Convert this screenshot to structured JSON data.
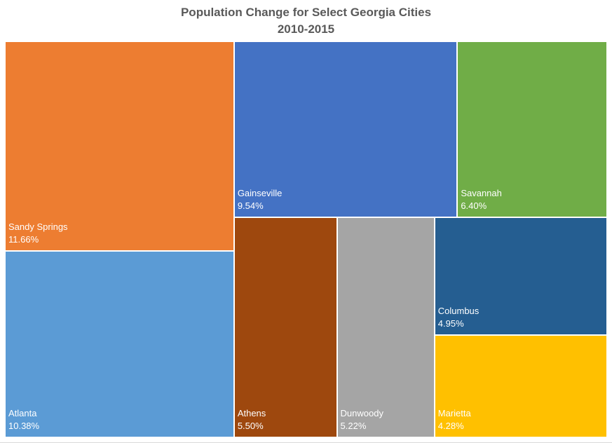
{
  "chart_data": {
    "type": "treemap",
    "title": "Population Change for Select Georgia Cities",
    "subtitle": "2010-2015",
    "items": [
      {
        "name": "Sandy Springs",
        "value": 11.66,
        "label": "11.66%",
        "color": "#ED7D31"
      },
      {
        "name": "Atlanta",
        "value": 10.38,
        "label": "10.38%",
        "color": "#5B9BD5"
      },
      {
        "name": "Gainseville",
        "value": 9.54,
        "label": "9.54%",
        "color": "#4472C4"
      },
      {
        "name": "Savannah",
        "value": 6.4,
        "label": "6.40%",
        "color": "#70AD47"
      },
      {
        "name": "Athens",
        "value": 5.5,
        "label": "5.50%",
        "color": "#9E480E"
      },
      {
        "name": "Dunwoody",
        "value": 5.22,
        "label": "5.22%",
        "color": "#A5A5A5"
      },
      {
        "name": "Columbus",
        "value": 4.95,
        "label": "4.95%",
        "color": "#255E91"
      },
      {
        "name": "Marietta",
        "value": 4.28,
        "label": "4.28%",
        "color": "#FFC000"
      }
    ]
  }
}
